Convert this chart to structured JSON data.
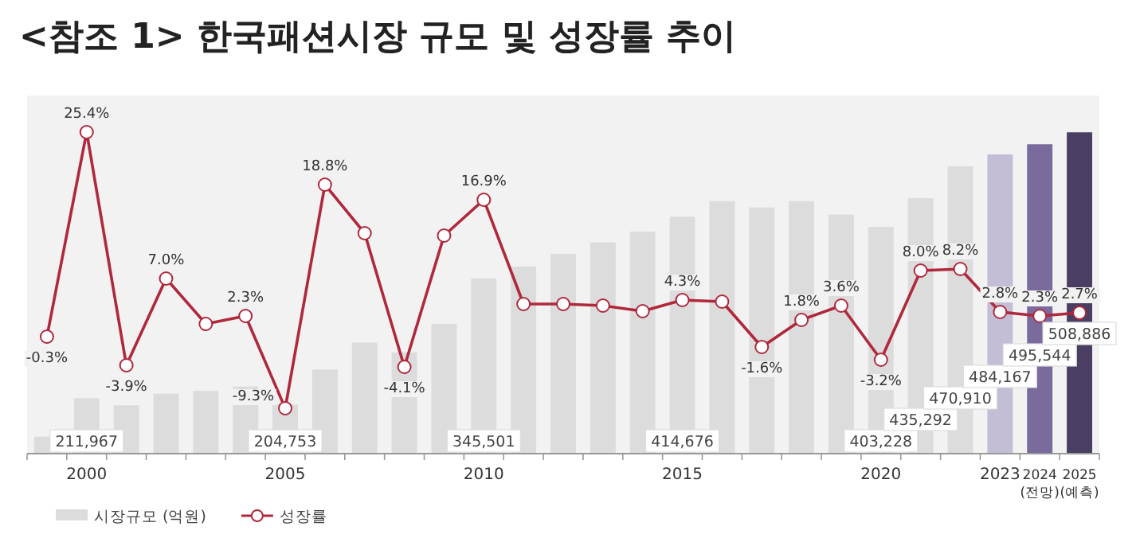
{
  "chart_data": {
    "type": "bar",
    "title": "<참조 1> 한국패션시장 규모 및 성장률 추이",
    "categories": [
      null,
      "2000",
      null,
      null,
      null,
      null,
      "2005",
      null,
      null,
      null,
      null,
      "2010",
      null,
      null,
      null,
      null,
      "2015",
      null,
      null,
      null,
      null,
      "2020",
      null,
      null,
      "2023",
      "2024 (전망)",
      "2025 (예측)"
    ],
    "series": [
      {
        "name": "시장규모 (억원)",
        "colors": [
          "#dcdcdc",
          "#dcdcdc",
          "#dcdcdc",
          "#dcdcdc",
          "#dcdcdc",
          "#dcdcdc",
          "#dcdcdc",
          "#dcdcdc",
          "#dcdcdc",
          "#dcdcdc",
          "#dcdcdc",
          "#dcdcdc",
          "#dcdcdc",
          "#dcdcdc",
          "#dcdcdc",
          "#dcdcdc",
          "#dcdcdc",
          "#dcdcdc",
          "#dcdcdc",
          "#dcdcdc",
          "#dcdcdc",
          "#dcdcdc",
          "#dcdcdc",
          "#dcdcdc",
          "#c3bdd6",
          "#7b6a9c",
          "#4a3f63"
        ],
        "values": [
          169000,
          211967,
          204000,
          217000,
          220000,
          225000,
          204753,
          244000,
          274000,
          263000,
          295000,
          345501,
          359000,
          373000,
          386000,
          398000,
          414676,
          432000,
          425000,
          432000,
          417000,
          403228,
          435292,
          470910,
          484167,
          495544,
          508886
        ],
        "value_labels": [
          null,
          "211,967",
          null,
          null,
          null,
          null,
          "204,753",
          null,
          null,
          null,
          null,
          "345,501",
          null,
          null,
          null,
          null,
          "414,676",
          null,
          null,
          null,
          null,
          "403,228",
          "435,292",
          "470,910",
          "484,167",
          "495,544",
          "508,886"
        ]
      },
      {
        "name": "성장률",
        "type": "line",
        "axis": "y2",
        "color": "#b0283c",
        "values": [
          -0.3,
          25.4,
          -3.9,
          7.0,
          1.3,
          2.3,
          -9.3,
          18.8,
          12.7,
          -4.1,
          12.4,
          16.9,
          3.8,
          3.8,
          3.6,
          2.9,
          4.3,
          4.1,
          -1.6,
          1.8,
          3.6,
          -3.2,
          8.0,
          8.2,
          2.8,
          2.3,
          2.7
        ],
        "value_labels": [
          "-0.3%",
          "25.4%",
          "-3.9%",
          "7.0%",
          null,
          "2.3%",
          "-9.3%",
          "18.8%",
          null,
          "-4.1%",
          null,
          "16.9%",
          null,
          null,
          null,
          null,
          "4.3%",
          null,
          "-1.6%",
          "1.8%",
          "3.6%",
          "-3.2%",
          "8.0%",
          "8.2%",
          "2.8%",
          "2.3%",
          "2.7%"
        ]
      }
    ],
    "ylim": [
      150000,
      550000
    ],
    "y2lim": [
      -15,
      30
    ],
    "marker": "circle",
    "legend": "bottom left"
  }
}
